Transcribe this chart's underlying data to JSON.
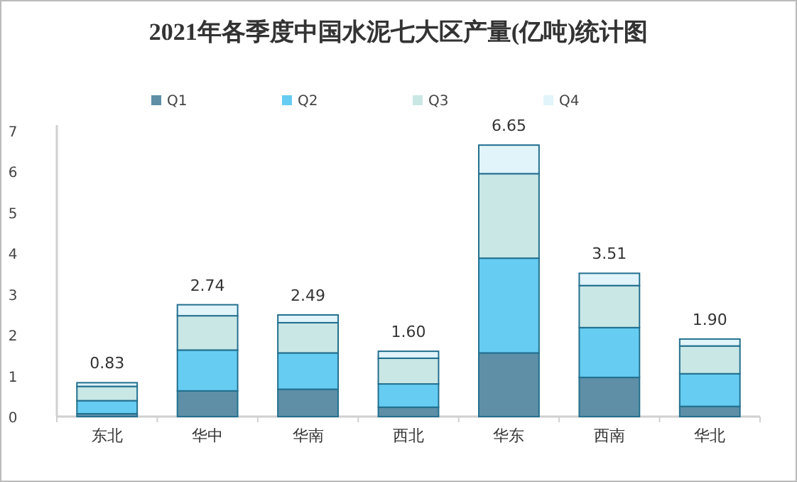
{
  "chart_data": {
    "type": "bar",
    "stacked": true,
    "title": "2021年各季度中国水泥七大区产量(亿吨)统计图",
    "categories": [
      "东北",
      "华中",
      "华南",
      "西北",
      "华东",
      "西南",
      "华北"
    ],
    "series": [
      {
        "name": "Q1",
        "color": "#5e8fa6",
        "values": [
          0.07,
          0.63,
          0.67,
          0.23,
          1.56,
          0.96,
          0.25
        ]
      },
      {
        "name": "Q2",
        "color": "#66ccf2",
        "values": [
          0.32,
          1.0,
          0.89,
          0.57,
          2.32,
          1.22,
          0.8
        ]
      },
      {
        "name": "Q3",
        "color": "#c9e7e5",
        "values": [
          0.35,
          0.84,
          0.74,
          0.63,
          2.07,
          1.03,
          0.68
        ]
      },
      {
        "name": "Q4",
        "color": "#e0f4fa",
        "values": [
          0.09,
          0.27,
          0.19,
          0.17,
          0.7,
          0.3,
          0.17
        ]
      }
    ],
    "totals": [
      "0.83",
      "2.74",
      "2.49",
      "1.60",
      "6.65",
      "3.51",
      "1.90"
    ],
    "ylim": [
      0,
      7
    ],
    "yticks": [
      0,
      1,
      2,
      3,
      4,
      5,
      6,
      7
    ],
    "legend": "top",
    "grid": false
  }
}
